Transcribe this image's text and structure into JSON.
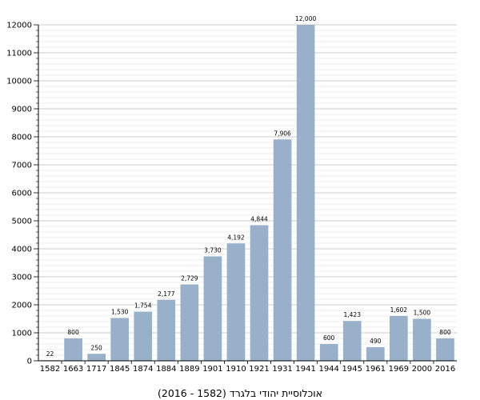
{
  "chart_data": {
    "type": "bar",
    "title": "",
    "xlabel": "אוכלוסיית יהודי בלגרד (1582 - 2016)",
    "ylabel": "",
    "categories": [
      "1582",
      "1663",
      "1717",
      "1845",
      "1874",
      "1884",
      "1889",
      "1901",
      "1910",
      "1921",
      "1931",
      "1941",
      "1944",
      "1945",
      "1961",
      "1969",
      "2000",
      "2016"
    ],
    "values": [
      22,
      800,
      250,
      1530,
      1754,
      2177,
      2729,
      3730,
      4192,
      4844,
      7906,
      12000,
      600,
      1423,
      490,
      1602,
      1500,
      800
    ],
    "data_labels": [
      "22",
      "800",
      "250",
      "1,530",
      "1,754",
      "2,177",
      "2,729",
      "3,730",
      "4,192",
      "4,844",
      "7,906",
      "12,000",
      "600",
      "1,423",
      "490",
      "1,602",
      "1,500",
      "800"
    ],
    "yticks": [
      0,
      1000,
      2000,
      3000,
      4000,
      5000,
      6000,
      7000,
      8000,
      9000,
      10000,
      11000,
      12000
    ],
    "ylim": [
      0,
      12000
    ],
    "minor_ticks_per_major": 4,
    "grid": "horizontal",
    "legend": "none",
    "colors": {
      "bar": "#98b0c9",
      "grid": "#bbbbbb",
      "minor_grid": "#dddddd",
      "axis": "#000000"
    }
  }
}
